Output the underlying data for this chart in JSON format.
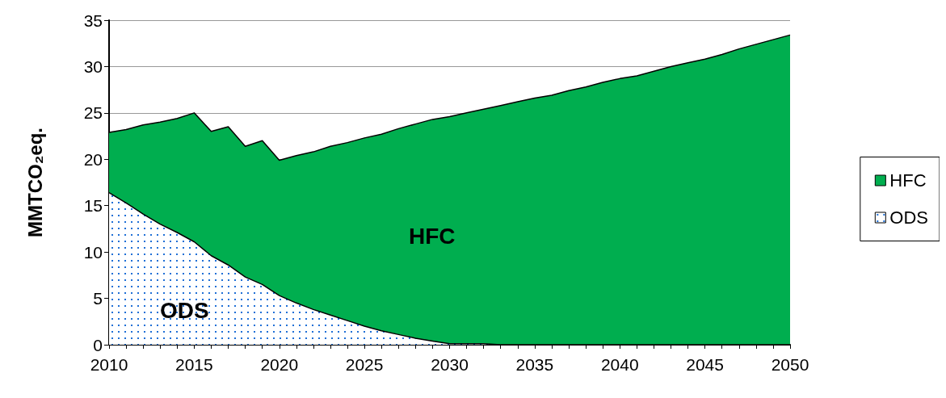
{
  "chart_data": {
    "type": "area",
    "stacked": true,
    "ylabel": "MMTCO₂eq.",
    "x": [
      2010,
      2011,
      2012,
      2013,
      2014,
      2015,
      2016,
      2017,
      2018,
      2019,
      2020,
      2021,
      2022,
      2023,
      2024,
      2025,
      2026,
      2027,
      2028,
      2029,
      2030,
      2031,
      2032,
      2033,
      2034,
      2035,
      2036,
      2037,
      2038,
      2039,
      2040,
      2041,
      2042,
      2043,
      2044,
      2045,
      2046,
      2047,
      2048,
      2049,
      2050
    ],
    "series": [
      {
        "name": "ODS",
        "color": "#1f6fd6",
        "values": [
          16.4,
          15.3,
          14.1,
          13.0,
          12.1,
          11.1,
          9.6,
          8.6,
          7.3,
          6.5,
          5.3,
          4.5,
          3.8,
          3.2,
          2.6,
          2.0,
          1.5,
          1.1,
          0.7,
          0.4,
          0.1,
          0.1,
          0.1,
          0,
          0,
          0,
          0,
          0,
          0,
          0,
          0,
          0,
          0,
          0,
          0,
          0,
          0,
          0,
          0,
          0,
          0
        ]
      },
      {
        "name": "HFC",
        "color": "#00ae4f",
        "values": [
          6.5,
          7.9,
          9.6,
          11.0,
          12.3,
          13.9,
          13.4,
          14.9,
          14.1,
          15.5,
          14.6,
          15.9,
          17.0,
          18.2,
          19.2,
          20.3,
          21.2,
          22.2,
          23.1,
          23.9,
          24.5,
          24.9,
          25.3,
          25.8,
          26.2,
          26.6,
          26.9,
          27.4,
          27.8,
          28.3,
          28.7,
          29.0,
          29.5,
          30.0,
          30.4,
          30.8,
          31.3,
          31.9,
          32.4,
          32.9,
          33.4
        ]
      }
    ],
    "annotations": [
      "HFC",
      "ODS"
    ],
    "xlim": [
      2010,
      2050
    ],
    "xticks": [
      2010,
      2015,
      2020,
      2025,
      2030,
      2035,
      2040,
      2045,
      2050
    ],
    "ylim": [
      0,
      35
    ],
    "yticks": [
      0,
      5,
      10,
      15,
      20,
      25,
      30,
      35
    ],
    "grid": "y",
    "legend": "right"
  }
}
